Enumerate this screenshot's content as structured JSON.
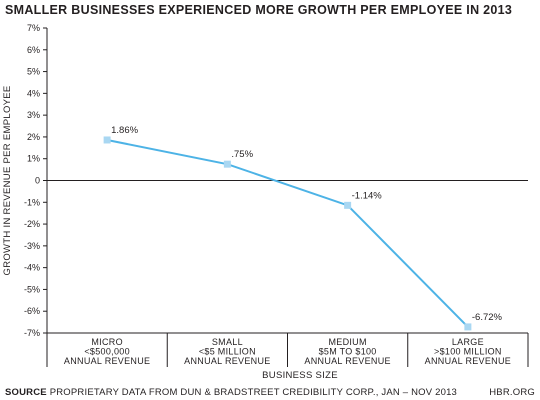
{
  "chart_data": {
    "type": "line",
    "title": "SMALLER BUSINESSES EXPERIENCED MORE GROWTH PER EMPLOYEE IN 2013",
    "xlabel": "BUSINESS SIZE",
    "ylabel": "GROWTH IN REVENUE PER EMPLOYEE",
    "categories": [
      [
        "MICRO",
        "<$500,000",
        "ANNUAL REVENUE"
      ],
      [
        "SMALL",
        "<$5 MILLION",
        "ANNUAL REVENUE"
      ],
      [
        "MEDIUM",
        "$5M TO $100",
        "ANNUAL REVENUE"
      ],
      [
        "LARGE",
        ">$100 MILLION",
        "ANNUAL REVENUE"
      ]
    ],
    "values": [
      1.86,
      0.75,
      -1.14,
      -6.72
    ],
    "data_labels": [
      "1.86%",
      ".75%",
      "-1.14%",
      "-6.72%"
    ],
    "y_ticks": [
      {
        "value": 7,
        "label": "7%"
      },
      {
        "value": 6,
        "label": "6%"
      },
      {
        "value": 5,
        "label": "5%"
      },
      {
        "value": 4,
        "label": "4%"
      },
      {
        "value": 3,
        "label": "3%"
      },
      {
        "value": 2,
        "label": "2%"
      },
      {
        "value": 1,
        "label": "1%"
      },
      {
        "value": 0,
        "label": "0"
      },
      {
        "value": -1,
        "label": "-1%"
      },
      {
        "value": -2,
        "label": "-2%"
      },
      {
        "value": -3,
        "label": "-3%"
      },
      {
        "value": -4,
        "label": "-4%"
      },
      {
        "value": -5,
        "label": "-5%"
      },
      {
        "value": -6,
        "label": "-6%"
      },
      {
        "value": -7,
        "label": "-7%"
      }
    ],
    "ylim": [
      -7,
      7
    ],
    "grid": false,
    "colors": {
      "line": "#4db3e6",
      "marker": "#a9d7f2",
      "axis": "#231f20"
    }
  },
  "footer": {
    "source_label": "SOURCE",
    "source_text": "PROPRIETARY DATA FROM DUN & BRADSTREET CREDIBILITY CORP., JAN – NOV 2013",
    "credit": "HBR.ORG"
  }
}
